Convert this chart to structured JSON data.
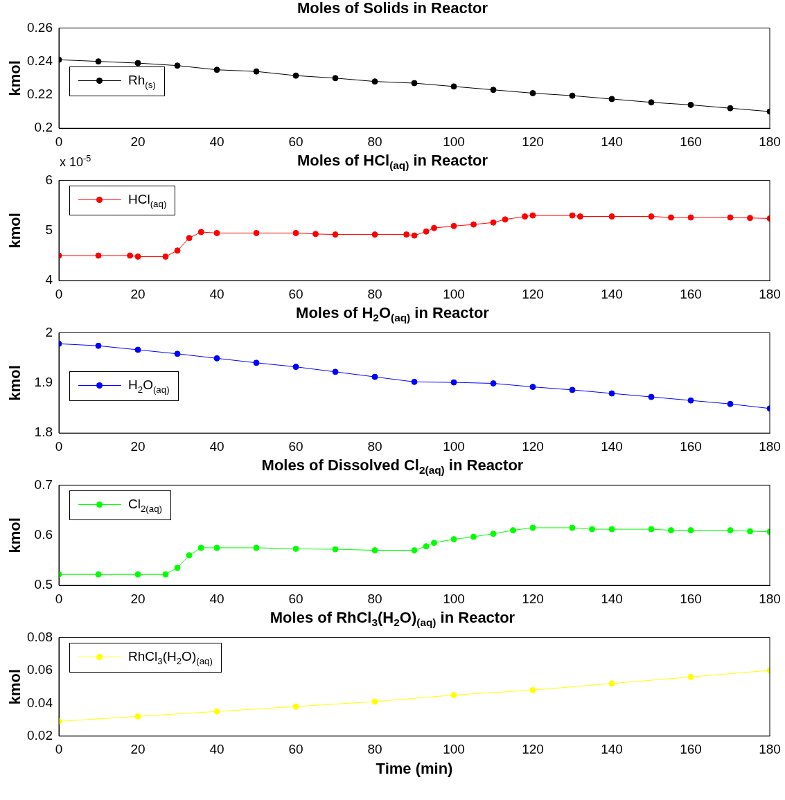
{
  "chart_data": [
    {
      "type": "line",
      "title": "Moles of Solids in Reactor",
      "ylabel": "kmol",
      "xlim": [
        0,
        180
      ],
      "xticks": [
        0,
        20,
        40,
        60,
        80,
        100,
        120,
        140,
        160,
        180
      ],
      "ylim": [
        0.2,
        0.26
      ],
      "yticks": [
        0.2,
        0.22,
        0.24,
        0.26
      ],
      "grid": false,
      "legend": "left",
      "marker": "circle",
      "line_style": "solid",
      "x": [
        0,
        10,
        20,
        30,
        40,
        50,
        60,
        70,
        80,
        90,
        100,
        110,
        120,
        130,
        140,
        150,
        160,
        170,
        180
      ],
      "series": [
        {
          "name": "Rh$_{(s)}$",
          "color": "#000000",
          "values": [
            0.241,
            0.24,
            0.239,
            0.2375,
            0.235,
            0.234,
            0.2315,
            0.23,
            0.228,
            0.227,
            0.225,
            0.223,
            0.221,
            0.2195,
            0.2175,
            0.2155,
            0.214,
            0.212,
            0.21
          ]
        }
      ]
    },
    {
      "type": "line",
      "title": "Moles of HCl$_{(aq)}$ in Reactor",
      "ylabel": "kmol",
      "annotations": [
        "x 10$^{-5}$"
      ],
      "xlim": [
        0,
        180
      ],
      "xticks": [
        0,
        20,
        40,
        60,
        80,
        100,
        120,
        140,
        160,
        180
      ],
      "ylim": [
        4,
        6
      ],
      "yticks": [
        4,
        5,
        6
      ],
      "grid": false,
      "legend": "top left",
      "marker": "circle",
      "line_style": "solid",
      "x": [
        0,
        10,
        18,
        20,
        27,
        30,
        33,
        36,
        40,
        50,
        60,
        65,
        70,
        80,
        88,
        90,
        93,
        95,
        100,
        105,
        110,
        113,
        118,
        120,
        130,
        132,
        140,
        150,
        155,
        160,
        170,
        175,
        180
      ],
      "series": [
        {
          "name": "HCl$_{(aq)}$",
          "color": "#ff0000",
          "values": [
            4.5,
            4.5,
            4.5,
            4.48,
            4.48,
            4.6,
            4.85,
            4.97,
            4.95,
            4.95,
            4.95,
            4.93,
            4.92,
            4.92,
            4.92,
            4.9,
            4.98,
            5.05,
            5.09,
            5.12,
            5.16,
            5.22,
            5.28,
            5.3,
            5.3,
            5.28,
            5.28,
            5.28,
            5.26,
            5.26,
            5.26,
            5.25,
            5.24
          ]
        }
      ]
    },
    {
      "type": "line",
      "title": "Moles of H$_{2}$O$_{(aq)}$ in Reactor",
      "ylabel": "kmol",
      "xlim": [
        0,
        180
      ],
      "xticks": [
        0,
        20,
        40,
        60,
        80,
        100,
        120,
        140,
        160,
        180
      ],
      "ylim": [
        1.8,
        2
      ],
      "yticks": [
        1.8,
        1.9,
        2
      ],
      "grid": false,
      "legend": "left",
      "marker": "circle",
      "line_style": "solid",
      "x": [
        0,
        10,
        20,
        30,
        40,
        50,
        60,
        70,
        80,
        90,
        100,
        110,
        120,
        130,
        140,
        150,
        160,
        170,
        180
      ],
      "series": [
        {
          "name": "H$_{2}$O$_{(aq)}$",
          "color": "#0000ff",
          "values": [
            1.978,
            1.974,
            1.966,
            1.958,
            1.949,
            1.94,
            1.932,
            1.922,
            1.912,
            1.902,
            1.901,
            1.899,
            1.892,
            1.886,
            1.879,
            1.872,
            1.865,
            1.858,
            1.849
          ]
        }
      ]
    },
    {
      "type": "line",
      "title": "Moles of Dissolved Cl$_{2(aq)}$ in Reactor",
      "ylabel": "kmol",
      "xlim": [
        0,
        180
      ],
      "xticks": [
        0,
        20,
        40,
        60,
        80,
        100,
        120,
        140,
        160,
        180
      ],
      "ylim": [
        0.5,
        0.7
      ],
      "yticks": [
        0.5,
        0.6,
        0.7
      ],
      "grid": false,
      "legend": "top left",
      "marker": "circle",
      "line_style": "solid",
      "x": [
        0,
        10,
        20,
        27,
        30,
        33,
        36,
        40,
        50,
        60,
        70,
        80,
        90,
        93,
        95,
        100,
        105,
        110,
        115,
        120,
        130,
        135,
        140,
        150,
        155,
        160,
        170,
        175,
        180
      ],
      "series": [
        {
          "name": "Cl$_{2(aq)}$",
          "color": "#00ff00",
          "values": [
            0.522,
            0.522,
            0.522,
            0.522,
            0.535,
            0.56,
            0.575,
            0.575,
            0.575,
            0.573,
            0.572,
            0.57,
            0.57,
            0.578,
            0.585,
            0.592,
            0.597,
            0.603,
            0.61,
            0.615,
            0.615,
            0.612,
            0.612,
            0.612,
            0.61,
            0.61,
            0.61,
            0.608,
            0.607
          ]
        }
      ]
    },
    {
      "type": "line",
      "title": "Moles of RhCl$_{3}$(H$_{2}$O)$_{(aq)}$ in Reactor",
      "ylabel": "kmol",
      "xlabel": "Time (min)",
      "xlim": [
        0,
        180
      ],
      "xticks": [
        0,
        20,
        40,
        60,
        80,
        100,
        120,
        140,
        160,
        180
      ],
      "ylim": [
        0.02,
        0.08
      ],
      "yticks": [
        0.02,
        0.04,
        0.06,
        0.08
      ],
      "grid": false,
      "legend": "top left",
      "marker": "circle",
      "line_style": "solid",
      "x": [
        0,
        20,
        40,
        60,
        80,
        100,
        120,
        140,
        160,
        180
      ],
      "series": [
        {
          "name": "RhCl$_{3}$(H$_{2}$O)$_{(aq)}$",
          "color": "#ffff00",
          "values": [
            0.029,
            0.032,
            0.035,
            0.038,
            0.041,
            0.045,
            0.048,
            0.052,
            0.056,
            0.06
          ]
        }
      ]
    }
  ]
}
